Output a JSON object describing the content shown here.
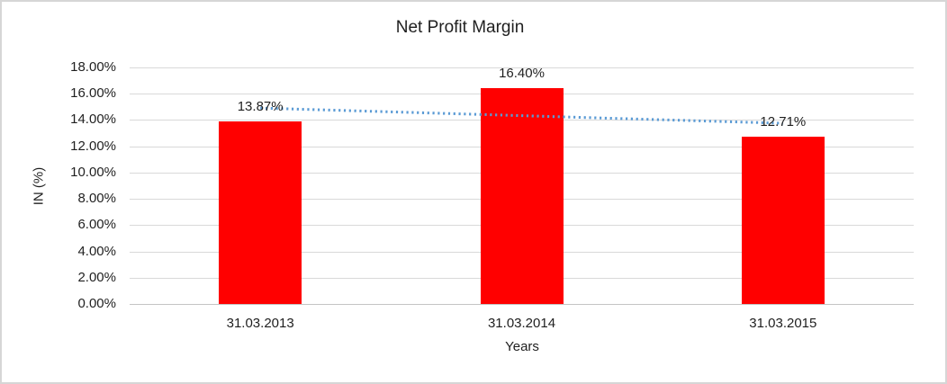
{
  "chart_data": {
    "type": "bar",
    "title": "Net Profit Margin",
    "categories": [
      "31.03.2013",
      "31.03.2014",
      "31.03.2015"
    ],
    "values": [
      13.87,
      16.4,
      12.71
    ],
    "data_labels": [
      "13.87%",
      "16.40%",
      "12.71%"
    ],
    "xlabel": "Years",
    "ylabel": "IN (%)",
    "ylim": [
      0,
      18
    ],
    "ytick_step": 2,
    "ytick_labels_top_to_bottom": [
      "18.00%",
      "16.00%",
      "14.00%",
      "12.00%",
      "10.00%",
      "8.00%",
      "6.00%",
      "4.00%",
      "2.00%",
      "0.00%"
    ],
    "legend": "none",
    "grid": "horizontal",
    "bar_color": "#ff0000",
    "gridline_color": "#d9d9d9",
    "axis_line_color": "#c4c4c4",
    "text_color": "#1f1f1f",
    "trendline": {
      "kind": "linear",
      "line_style": "dotted",
      "color": "#5b9bd5",
      "start_value": 14.91,
      "end_value": 13.75
    }
  }
}
